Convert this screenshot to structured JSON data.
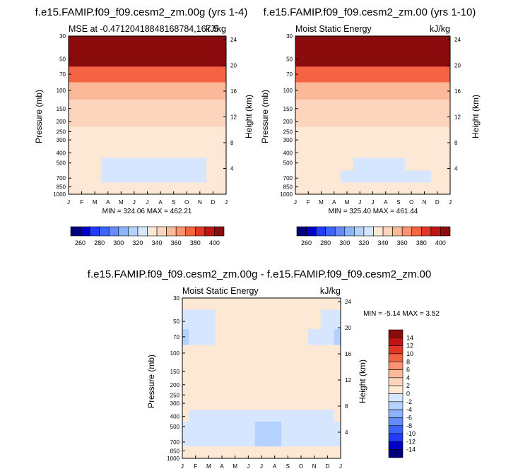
{
  "scale": {
    "full": {
      "levels": [
        250,
        260,
        270,
        280,
        290,
        300,
        310,
        320,
        330,
        340,
        350,
        360,
        370,
        380,
        390,
        400
      ],
      "colors": [
        "#00007f",
        "#0000c8",
        "#1f3cff",
        "#3c64ff",
        "#648cff",
        "#8cb4ff",
        "#b4d2ff",
        "#d7e6ff",
        "#fde8d5",
        "#fcd5bc",
        "#fcb99a",
        "#fc9272",
        "#f46443",
        "#e23526",
        "#c01414",
        "#8a0c0c"
      ],
      "tick_labels": [
        "260",
        "280",
        "300",
        "320",
        "340",
        "360",
        "380",
        "400"
      ]
    },
    "diff": {
      "levels": [
        -16,
        -14,
        -12,
        -10,
        -8,
        -6,
        -4,
        -2,
        0,
        2,
        4,
        6,
        8,
        10,
        12,
        14
      ],
      "colors": [
        "#00007f",
        "#0000c8",
        "#1f3cff",
        "#3c64ff",
        "#648cff",
        "#8cb4ff",
        "#b4d2ff",
        "#d7e6ff",
        "#fde8d5",
        "#fcd5bc",
        "#fcb99a",
        "#fc9272",
        "#f46443",
        "#e23526",
        "#c01414",
        "#8a0c0c"
      ],
      "tick_labels": [
        "14",
        "12",
        "10",
        "8",
        "6",
        "4",
        "2",
        "0",
        "-2",
        "-4",
        "-6",
        "-8",
        "-10",
        "-12",
        "-14"
      ]
    }
  },
  "chart_data": [
    {
      "type": "heatmap",
      "title": "f.e15.FAMIP.f09_f09.cesm2_zm.00g (yrs 1-4)",
      "left_string": "MSE at -0.47120418848168784,167.5",
      "right_string": "kJ/kg",
      "ylabel": "Pressure (mb)",
      "ylabel_right": "Height (km)",
      "pressure_ticks": [
        "30",
        "50",
        "70",
        "100",
        "150",
        "200",
        "250",
        "300",
        "400",
        "500",
        "700",
        "850",
        "1000"
      ],
      "height_ticks": [
        "24",
        "20",
        "16",
        "12",
        "8",
        "4"
      ],
      "month_ticks": [
        "J",
        "F",
        "M",
        "A",
        "M",
        "J",
        "J",
        "A",
        "S",
        "O",
        "N",
        "D",
        "J"
      ],
      "minmax": "MIN = 324.06 MAX = 462.21",
      "field": [
        {
          "p": 1000,
          "values": [
            338,
            338,
            338,
            338,
            338,
            338,
            338,
            338,
            338,
            338,
            338,
            338,
            338
          ]
        },
        {
          "p": 850,
          "values": [
            332,
            332,
            332,
            332,
            332,
            332,
            332,
            332,
            332,
            332,
            332,
            332,
            332
          ]
        },
        {
          "p": 700,
          "values": [
            330,
            330,
            330,
            328,
            327,
            326,
            326,
            326,
            327,
            327,
            328,
            330,
            330
          ]
        },
        {
          "p": 500,
          "values": [
            331,
            331,
            331,
            329,
            327,
            326,
            326,
            327,
            327,
            328,
            329,
            331,
            331
          ]
        },
        {
          "p": 400,
          "values": [
            332,
            332,
            332,
            331,
            330,
            330,
            330,
            330,
            331,
            331,
            331,
            332,
            332
          ]
        },
        {
          "p": 300,
          "values": [
            333,
            333,
            333,
            333,
            333,
            333,
            333,
            333,
            333,
            333,
            333,
            333,
            333
          ]
        },
        {
          "p": 250,
          "values": [
            336,
            336,
            338,
            338,
            338,
            338,
            338,
            338,
            338,
            338,
            338,
            337,
            336
          ]
        },
        {
          "p": 200,
          "values": [
            346,
            344,
            340,
            340,
            341,
            341,
            342,
            343,
            342,
            341,
            340,
            343,
            346
          ]
        },
        {
          "p": 150,
          "values": [
            346,
            346,
            346,
            346,
            346,
            346,
            346,
            346,
            346,
            346,
            346,
            346,
            346
          ]
        },
        {
          "p": 100,
          "values": [
            351,
            351,
            351,
            351,
            351,
            351,
            351,
            351,
            351,
            351,
            351,
            351,
            351
          ]
        },
        {
          "p": 70,
          "values": [
            373,
            373,
            372,
            372,
            371,
            370,
            370,
            370,
            371,
            372,
            372,
            373,
            373
          ]
        },
        {
          "p": 50,
          "values": [
            405,
            405,
            404,
            403,
            402,
            401,
            401,
            401,
            402,
            403,
            404,
            405,
            405
          ]
        },
        {
          "p": 30,
          "values": [
            420,
            420,
            420,
            420,
            420,
            420,
            420,
            420,
            420,
            420,
            420,
            420,
            420
          ]
        }
      ]
    },
    {
      "type": "heatmap",
      "title": "f.e15.FAMIP.f09_f09.cesm2_zm.00 (yrs 1-10)",
      "left_string": "Moist Static Energy",
      "right_string": "kJ/kg",
      "ylabel": "Pressure (mb)",
      "ylabel_right": "Height (km)",
      "pressure_ticks": [
        "30",
        "50",
        "70",
        "100",
        "150",
        "200",
        "250",
        "300",
        "400",
        "500",
        "700",
        "850",
        "1000"
      ],
      "height_ticks": [
        "24",
        "20",
        "16",
        "12",
        "8",
        "4"
      ],
      "month_ticks": [
        "J",
        "F",
        "M",
        "A",
        "M",
        "J",
        "J",
        "A",
        "S",
        "O",
        "N",
        "D",
        "J"
      ],
      "minmax": "MIN = 325.40 MAX = 461.44",
      "field": [
        {
          "p": 1000,
          "values": [
            338,
            338,
            338,
            338,
            338,
            338,
            338,
            338,
            338,
            338,
            338,
            338,
            338
          ]
        },
        {
          "p": 850,
          "values": [
            332,
            332,
            332,
            332,
            332,
            332,
            332,
            332,
            332,
            332,
            332,
            332,
            332
          ]
        },
        {
          "p": 700,
          "values": [
            331,
            331,
            331,
            331,
            329,
            327,
            326,
            326,
            327,
            327,
            328,
            331,
            331
          ]
        },
        {
          "p": 500,
          "values": [
            332,
            332,
            332,
            331,
            330,
            329,
            329,
            329,
            329,
            330,
            331,
            332,
            332
          ]
        },
        {
          "p": 400,
          "values": [
            333,
            333,
            333,
            333,
            333,
            333,
            333,
            333,
            333,
            333,
            333,
            333,
            333
          ]
        },
        {
          "p": 300,
          "values": [
            334,
            334,
            334,
            334,
            334,
            334,
            334,
            334,
            334,
            334,
            334,
            334,
            334
          ]
        },
        {
          "p": 250,
          "values": [
            336,
            336,
            338,
            338,
            338,
            338,
            338,
            338,
            338,
            338,
            338,
            337,
            336
          ]
        },
        {
          "p": 200,
          "values": [
            346,
            344,
            340,
            340,
            341,
            341,
            342,
            343,
            342,
            341,
            340,
            343,
            346
          ]
        },
        {
          "p": 150,
          "values": [
            346,
            346,
            346,
            346,
            346,
            346,
            346,
            346,
            346,
            346,
            346,
            346,
            346
          ]
        },
        {
          "p": 100,
          "values": [
            351,
            351,
            351,
            351,
            351,
            351,
            351,
            351,
            351,
            351,
            351,
            351,
            351
          ]
        },
        {
          "p": 70,
          "values": [
            373,
            373,
            372,
            372,
            371,
            370,
            370,
            370,
            371,
            372,
            372,
            373,
            373
          ]
        },
        {
          "p": 50,
          "values": [
            405,
            405,
            404,
            403,
            402,
            401,
            401,
            401,
            402,
            403,
            404,
            405,
            405
          ]
        },
        {
          "p": 30,
          "values": [
            420,
            420,
            420,
            420,
            420,
            420,
            420,
            420,
            420,
            420,
            420,
            420,
            420
          ]
        }
      ]
    },
    {
      "type": "heatmap",
      "title": "f.e15.FAMIP.f09_f09.cesm2_zm.00g - f.e15.FAMIP.f09_f09.cesm2_zm.00",
      "left_string": "Moist Static Energy",
      "right_string": "kJ/kg",
      "ylabel": "Pressure (mb)",
      "ylabel_right": "Height (km)",
      "pressure_ticks": [
        "30",
        "50",
        "70",
        "100",
        "150",
        "200",
        "250",
        "300",
        "400",
        "500",
        "700",
        "850",
        "1000"
      ],
      "height_ticks": [
        "24",
        "20",
        "16",
        "12",
        "8",
        "4"
      ],
      "month_ticks": [
        "J",
        "F",
        "M",
        "A",
        "M",
        "J",
        "J",
        "A",
        "S",
        "O",
        "N",
        "D",
        "J"
      ],
      "minmax": "MIN = -5.14 MAX =  3.52",
      "field": [
        {
          "p": 1000,
          "values": [
            0.5,
            0.5,
            0.5,
            0.5,
            0.5,
            0.5,
            0.5,
            0.5,
            0.5,
            0.5,
            0.5,
            0.5,
            0.5
          ]
        },
        {
          "p": 850,
          "values": [
            0.5,
            1,
            1,
            0.5,
            0.5,
            0.5,
            0.5,
            0.5,
            0.5,
            0.5,
            0.5,
            1,
            0.5
          ]
        },
        {
          "p": 700,
          "values": [
            -1,
            -1,
            -1,
            -1,
            -1.5,
            -2,
            -3,
            -3,
            -1.5,
            -1,
            -1,
            -1,
            -1
          ]
        },
        {
          "p": 500,
          "values": [
            -1,
            -1,
            -1,
            -1,
            -1,
            -1.5,
            -2.5,
            -2.5,
            -1.5,
            -1,
            -1,
            -1,
            -1
          ]
        },
        {
          "p": 400,
          "values": [
            0.5,
            -1,
            -1,
            -1,
            -1,
            -1,
            -1,
            -1,
            -1,
            -1,
            -1,
            -1,
            0.5
          ]
        },
        {
          "p": 300,
          "values": [
            0.5,
            0.5,
            0.5,
            0.5,
            0.5,
            0.5,
            0.5,
            0.5,
            0.5,
            0.5,
            0.5,
            0.5,
            0.5
          ]
        },
        {
          "p": 250,
          "values": [
            0.5,
            0.5,
            0.5,
            0.5,
            0.5,
            0.5,
            0.5,
            0.5,
            0.5,
            0.5,
            0.5,
            0.5,
            0.5
          ]
        },
        {
          "p": 200,
          "values": [
            0.5,
            0.5,
            0.5,
            0.5,
            0.5,
            0.5,
            0.5,
            0.5,
            0.5,
            0.5,
            0.5,
            0.5,
            0.5
          ]
        },
        {
          "p": 150,
          "values": [
            0.5,
            0.5,
            0.5,
            0.5,
            0.5,
            0.5,
            0.5,
            0.5,
            0.5,
            0.5,
            0.5,
            0.5,
            0.5
          ]
        },
        {
          "p": 100,
          "values": [
            0.5,
            0.5,
            0.5,
            0.5,
            0.5,
            0.5,
            0.5,
            0.5,
            0.5,
            0.5,
            0.5,
            0.5,
            0.5
          ]
        },
        {
          "p": 70,
          "values": [
            -3,
            -1,
            -1,
            0.5,
            0.5,
            0.5,
            0.5,
            0.5,
            0.5,
            0.5,
            -1,
            -1,
            -3
          ]
        },
        {
          "p": 50,
          "values": [
            -1,
            -1,
            -1,
            0.5,
            0.5,
            0.5,
            0.5,
            0.5,
            0.5,
            0.5,
            0.5,
            -1,
            -1
          ]
        },
        {
          "p": 30,
          "values": [
            0.5,
            0.5,
            0.5,
            0.5,
            0.5,
            0.5,
            0.5,
            0.5,
            0.5,
            0.5,
            0.5,
            0.5,
            0.5
          ]
        }
      ]
    }
  ]
}
